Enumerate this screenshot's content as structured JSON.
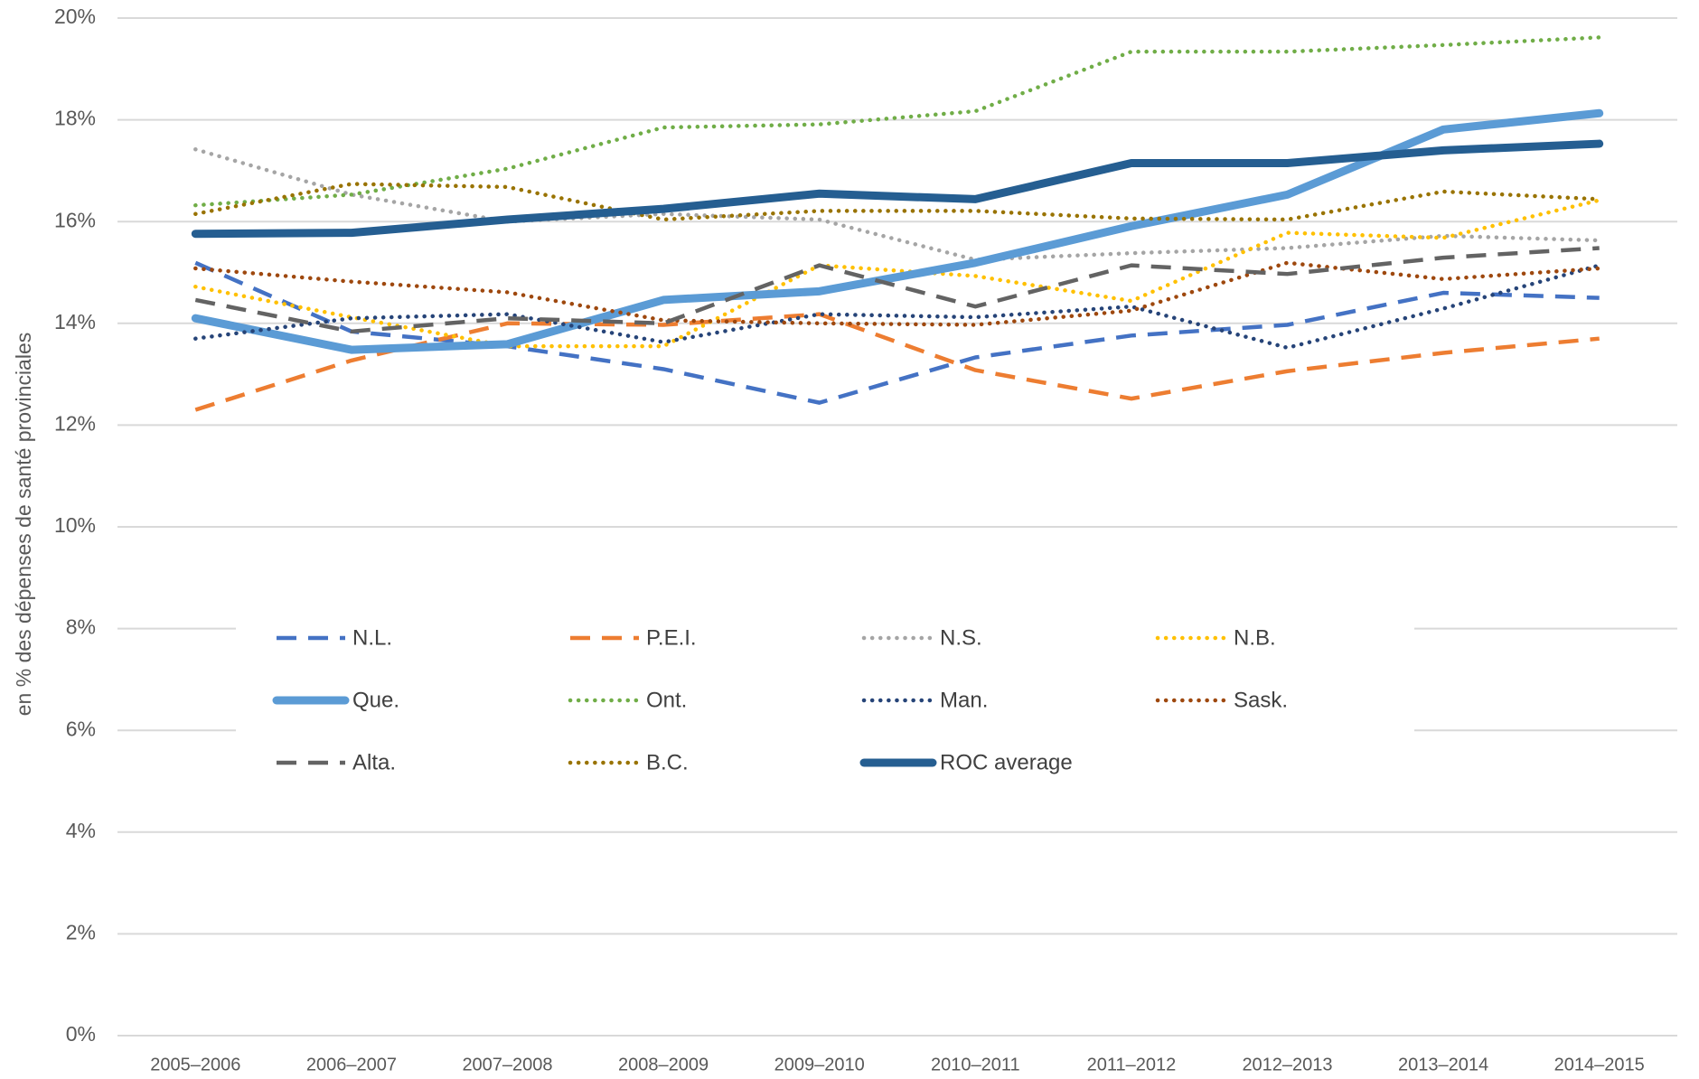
{
  "chart_data": {
    "type": "line",
    "y_label": "en % des dépenses de santé provinciales",
    "categories": [
      "2005–2006",
      "2006–2007",
      "2007–2008",
      "2008–2009",
      "2009–2010",
      "2010–2011",
      "2011–2012",
      "2012–2013",
      "2013–2014",
      "2014–2015"
    ],
    "ylim": [
      0,
      20
    ],
    "yticks": [
      {
        "value": 0,
        "label": "0%"
      },
      {
        "value": 2,
        "label": "2%"
      },
      {
        "value": 4,
        "label": "4%"
      },
      {
        "value": 6,
        "label": "6%"
      },
      {
        "value": 8,
        "label": "8%"
      },
      {
        "value": 10,
        "label": "10%"
      },
      {
        "value": 12,
        "label": "12%"
      },
      {
        "value": 14,
        "label": "14%"
      },
      {
        "value": 16,
        "label": "16%"
      },
      {
        "value": 18,
        "label": "18%"
      },
      {
        "value": 20,
        "label": "20%"
      }
    ],
    "grid": true,
    "legend": "center",
    "series": [
      {
        "name": "N.L.",
        "color": "#4472c4",
        "style": "dashed",
        "values": [
          15.19,
          13.84,
          13.55,
          13.1,
          12.44,
          13.33,
          13.76,
          13.97,
          14.6,
          14.5
        ]
      },
      {
        "name": "P.E.I.",
        "color": "#ed7d31",
        "style": "dashed",
        "values": [
          12.3,
          13.27,
          14.0,
          13.97,
          14.18,
          13.08,
          12.52,
          13.06,
          13.42,
          13.7
        ]
      },
      {
        "name": "N.S.",
        "color": "#a5a5a5",
        "style": "dotted",
        "values": [
          17.42,
          16.53,
          16.0,
          16.15,
          16.04,
          15.25,
          15.38,
          15.48,
          15.72,
          15.63
        ]
      },
      {
        "name": "N.B.",
        "color": "#ffc000",
        "style": "dotted",
        "values": [
          14.72,
          14.12,
          13.55,
          13.55,
          15.14,
          14.93,
          14.44,
          15.78,
          15.68,
          16.42
        ]
      },
      {
        "name": "Que.",
        "color": "#5b9bd5",
        "style": "solid",
        "values": [
          14.1,
          13.48,
          13.59,
          14.46,
          14.63,
          15.19,
          15.91,
          16.53,
          17.81,
          18.13
        ]
      },
      {
        "name": "Ont.",
        "color": "#70ad47",
        "style": "dotted",
        "values": [
          16.32,
          16.53,
          17.04,
          17.85,
          17.91,
          18.17,
          19.34,
          19.34,
          19.47,
          19.62
        ]
      },
      {
        "name": "Man.",
        "color": "#264478",
        "style": "dotted",
        "values": [
          13.7,
          14.1,
          14.18,
          13.63,
          14.18,
          14.12,
          14.33,
          13.52,
          14.29,
          15.14
        ]
      },
      {
        "name": "Sask.",
        "color": "#9e480e",
        "style": "dotted",
        "values": [
          15.08,
          14.82,
          14.61,
          14.06,
          14.0,
          13.97,
          14.25,
          15.19,
          14.87,
          15.08
        ]
      },
      {
        "name": "Alta.",
        "color": "#636363",
        "style": "dashed",
        "values": [
          14.46,
          13.84,
          14.1,
          14.0,
          15.14,
          14.33,
          15.14,
          14.97,
          15.29,
          15.48
        ]
      },
      {
        "name": "B.C.",
        "color": "#997300",
        "style": "dotted",
        "values": [
          16.15,
          16.74,
          16.68,
          16.04,
          16.21,
          16.21,
          16.06,
          16.04,
          16.59,
          16.44
        ]
      },
      {
        "name": "ROC average",
        "color": "#255e91",
        "style": "solid",
        "values": [
          15.76,
          15.78,
          16.04,
          16.25,
          16.55,
          16.44,
          17.15,
          17.15,
          17.4,
          17.53
        ]
      }
    ]
  }
}
